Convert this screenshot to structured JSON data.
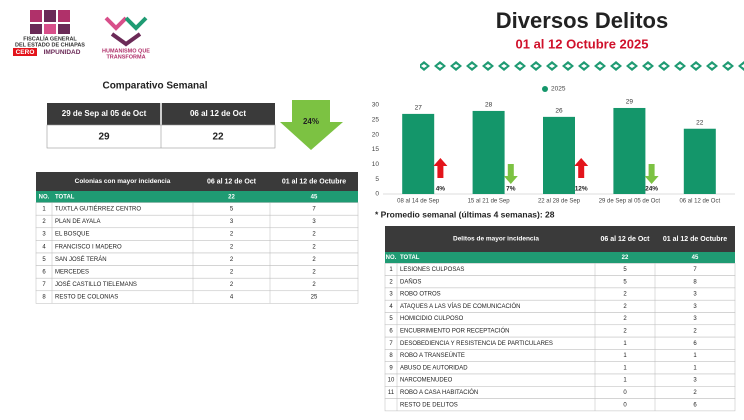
{
  "header": {
    "org_line1": "FISCALÍA GENERAL",
    "org_line2": "DEL ESTADO DE CHIAPAS",
    "badge_1": "CERO",
    "badge_2": "IMPUNIDAD",
    "slogan_1": "HUMANISMO QUE",
    "slogan_2": "TRANSFORMA",
    "title": "Diversos Delitos",
    "subtitle": "01 al 12 Octubre 2025"
  },
  "comparativo": {
    "title": "Comparativo Semanal",
    "headers": [
      "29 de Sep al 05 de Oct",
      "06 al 12 de Oct"
    ],
    "values": [
      29,
      22
    ],
    "change": "24%"
  },
  "chart_data": {
    "type": "bar",
    "series": [
      {
        "name": "2025",
        "color": "#14966a",
        "values": [
          27,
          28,
          26,
          29,
          22
        ]
      }
    ],
    "categories": [
      "08 al 14 de Sep",
      "15 al 21 de Sep",
      "22 al 28 de Sep",
      "29 de Sep al 05 de Oct",
      "06 al 12 de Oct"
    ],
    "ylim": [
      0,
      30
    ],
    "yticks": [
      0,
      5,
      10,
      15,
      20,
      25,
      30
    ],
    "grid": false,
    "legend": "top",
    "annotations": [
      {
        "label": "4%",
        "direction": "up",
        "color": "#e3141b"
      },
      {
        "label": "7%",
        "direction": "down",
        "color": "#7cc242"
      },
      {
        "label": "12%",
        "direction": "up",
        "color": "#e3141b"
      },
      {
        "label": "24%",
        "direction": "down",
        "color": "#7cc242"
      }
    ],
    "note": "* Promedio semanal (últimas 4 semanas): 28"
  },
  "colonias": {
    "headers": [
      "Colonias  con mayor incidencia",
      "06 al 12 de Oct",
      "01 al 12 de Octubre"
    ],
    "total_row": [
      "NO.",
      "TOTAL",
      22,
      45
    ],
    "rows": [
      [
        1,
        "TUXTLA GUTIÉRREZ CENTRO",
        5,
        7
      ],
      [
        2,
        "PLAN DE AYALA",
        3,
        3
      ],
      [
        3,
        "EL BOSQUE",
        2,
        2
      ],
      [
        4,
        "FRANCISCO I MADERO",
        2,
        2
      ],
      [
        5,
        "SAN JOSÉ TERÁN",
        2,
        2
      ],
      [
        6,
        "MERCEDES",
        2,
        2
      ],
      [
        7,
        "JOSÉ CASTILLO TIELEMANS",
        2,
        2
      ],
      [
        8,
        "RESTO DE COLONIAS",
        4,
        25
      ]
    ]
  },
  "delitos": {
    "headers": [
      "Delitos de mayor incidencia",
      "06 al 12 de Oct",
      "01 al 12 de Octubre"
    ],
    "total_row": [
      "NO.",
      "TOTAL",
      22,
      45
    ],
    "rows": [
      [
        1,
        "LESIONES CULPOSAS",
        5,
        7
      ],
      [
        2,
        "DAÑOS",
        5,
        8
      ],
      [
        3,
        "ROBO OTROS",
        2,
        3
      ],
      [
        4,
        "ATAQUES A LAS VÍAS DE COMUNICACIÓN",
        2,
        3
      ],
      [
        5,
        "HOMICIDIO CULPOSO",
        2,
        3
      ],
      [
        6,
        "ENCUBRIMIENTO POR RECEPTACIÓN",
        2,
        2
      ],
      [
        7,
        "DESOBEDIENCIA Y RESISTENCIA DE PARTICULARES",
        1,
        6
      ],
      [
        8,
        "ROBO A TRANSEÚNTE",
        1,
        1
      ],
      [
        9,
        "ABUSO DE AUTORIDAD",
        1,
        1
      ],
      [
        10,
        "NARCOMENUDEO",
        1,
        3
      ],
      [
        11,
        "ROBO A CASA HABITACIÓN",
        0,
        2
      ],
      [
        null,
        "RESTO DE DELITOS",
        0,
        6
      ]
    ]
  }
}
